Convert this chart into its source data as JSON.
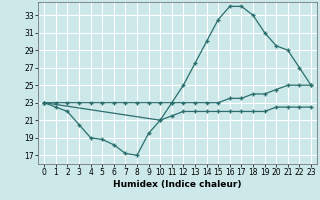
{
  "xlabel": "Humidex (Indice chaleur)",
  "bg_color": "#cce8e8",
  "grid_color": "#ffffff",
  "line_color": "#2a6e6e",
  "marker": "+",
  "xlim": [
    -0.5,
    23.5
  ],
  "ylim": [
    16.0,
    34.5
  ],
  "yticks": [
    17,
    19,
    21,
    23,
    25,
    27,
    29,
    31,
    33
  ],
  "xticks": [
    0,
    1,
    2,
    3,
    4,
    5,
    6,
    7,
    8,
    9,
    10,
    11,
    12,
    13,
    14,
    15,
    16,
    17,
    18,
    19,
    20,
    21,
    22,
    23
  ],
  "line1_x": [
    0,
    1,
    2,
    3,
    4,
    5,
    6,
    7,
    8,
    9,
    10,
    11,
    12,
    13,
    14,
    15,
    16,
    17,
    18,
    19,
    20,
    21,
    22,
    23
  ],
  "line1_y": [
    23,
    23,
    23,
    23,
    23,
    23,
    23,
    23,
    23,
    23,
    23,
    23,
    23,
    23,
    23,
    23,
    23.5,
    23.5,
    24,
    24,
    24.5,
    25,
    25,
    25
  ],
  "line2_x": [
    0,
    1,
    2,
    3,
    4,
    5,
    6,
    7,
    8,
    9,
    10,
    11,
    12,
    13,
    14,
    15,
    16,
    17,
    18,
    19,
    20,
    21,
    22,
    23
  ],
  "line2_y": [
    23,
    22.5,
    22,
    20.5,
    19,
    18.8,
    18.2,
    17.2,
    17,
    19.5,
    21,
    21.5,
    22,
    22,
    22,
    22,
    22,
    22,
    22,
    22,
    22.5,
    22.5,
    22.5,
    22.5
  ],
  "line3_x": [
    0,
    10,
    11,
    12,
    13,
    14,
    15,
    16,
    17,
    18,
    19,
    20,
    21,
    22,
    23
  ],
  "line3_y": [
    23,
    21,
    23,
    25,
    27.5,
    30,
    32.5,
    34,
    34,
    33,
    31,
    29.5,
    29,
    27,
    25
  ]
}
